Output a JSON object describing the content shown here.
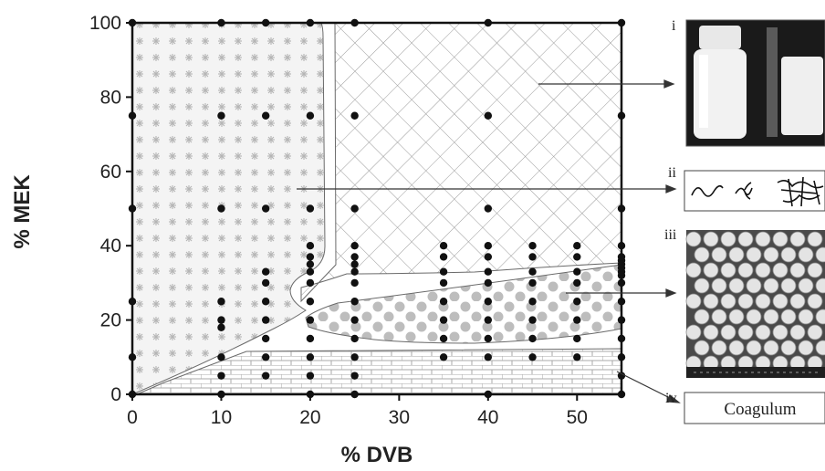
{
  "chart_data": {
    "type": "scatter",
    "title": "",
    "xlabel": "% DVB",
    "ylabel": "% MEK",
    "xlim": [
      0,
      55
    ],
    "ylim": [
      0,
      100
    ],
    "x_ticks": [
      0,
      10,
      20,
      30,
      40,
      50
    ],
    "y_ticks": [
      0,
      20,
      40,
      60,
      80,
      100
    ],
    "points": [
      [
        0,
        0
      ],
      [
        0,
        10
      ],
      [
        0,
        25
      ],
      [
        0,
        50
      ],
      [
        0,
        75
      ],
      [
        0,
        100
      ],
      [
        10,
        0
      ],
      [
        10,
        5
      ],
      [
        10,
        10
      ],
      [
        10,
        18
      ],
      [
        10,
        20
      ],
      [
        10,
        25
      ],
      [
        10,
        50
      ],
      [
        10,
        75
      ],
      [
        10,
        100
      ],
      [
        15,
        5
      ],
      [
        15,
        10
      ],
      [
        15,
        15
      ],
      [
        15,
        20
      ],
      [
        15,
        25
      ],
      [
        15,
        30
      ],
      [
        15,
        33
      ],
      [
        15,
        50
      ],
      [
        15,
        75
      ],
      [
        15,
        100
      ],
      [
        20,
        0
      ],
      [
        20,
        5
      ],
      [
        20,
        10
      ],
      [
        20,
        15
      ],
      [
        20,
        20
      ],
      [
        20,
        25
      ],
      [
        20,
        30
      ],
      [
        20,
        33
      ],
      [
        20,
        35
      ],
      [
        20,
        37
      ],
      [
        20,
        40
      ],
      [
        20,
        50
      ],
      [
        20,
        75
      ],
      [
        20,
        100
      ],
      [
        25,
        0
      ],
      [
        25,
        5
      ],
      [
        25,
        10
      ],
      [
        25,
        15
      ],
      [
        25,
        20
      ],
      [
        25,
        25
      ],
      [
        25,
        30
      ],
      [
        25,
        33
      ],
      [
        25,
        35
      ],
      [
        25,
        37
      ],
      [
        25,
        40
      ],
      [
        25,
        50
      ],
      [
        25,
        75
      ],
      [
        25,
        100
      ],
      [
        35,
        10
      ],
      [
        35,
        15
      ],
      [
        35,
        20
      ],
      [
        35,
        25
      ],
      [
        35,
        30
      ],
      [
        35,
        33
      ],
      [
        35,
        37
      ],
      [
        35,
        40
      ],
      [
        40,
        0
      ],
      [
        40,
        10
      ],
      [
        40,
        15
      ],
      [
        40,
        20
      ],
      [
        40,
        25
      ],
      [
        40,
        30
      ],
      [
        40,
        33
      ],
      [
        40,
        37
      ],
      [
        40,
        40
      ],
      [
        40,
        50
      ],
      [
        40,
        75
      ],
      [
        40,
        100
      ],
      [
        45,
        10
      ],
      [
        45,
        15
      ],
      [
        45,
        20
      ],
      [
        45,
        25
      ],
      [
        45,
        30
      ],
      [
        45,
        33
      ],
      [
        45,
        37
      ],
      [
        45,
        40
      ],
      [
        50,
        10
      ],
      [
        50,
        15
      ],
      [
        50,
        20
      ],
      [
        50,
        25
      ],
      [
        50,
        30
      ],
      [
        50,
        33
      ],
      [
        50,
        37
      ],
      [
        50,
        40
      ],
      [
        55,
        0
      ],
      [
        55,
        5
      ],
      [
        55,
        10
      ],
      [
        55,
        15
      ],
      [
        55,
        20
      ],
      [
        55,
        25
      ],
      [
        55,
        30
      ],
      [
        55,
        32
      ],
      [
        55,
        33
      ],
      [
        55,
        34
      ],
      [
        55,
        35
      ],
      [
        55,
        36
      ],
      [
        55,
        37
      ],
      [
        55,
        40
      ],
      [
        55,
        50
      ],
      [
        55,
        75
      ],
      [
        55,
        100
      ]
    ],
    "regions": [
      {
        "label": "i",
        "pattern": "crosshatch"
      },
      {
        "label": "ii",
        "pattern": "stars"
      },
      {
        "label": "iii",
        "pattern": "dots"
      },
      {
        "label": "iv",
        "pattern": "bricks"
      }
    ]
  },
  "panels": {
    "i_label": "i",
    "ii_label": "ii",
    "iii_label": "iii",
    "iv_label": "iv",
    "iv_text": "Coagulum"
  }
}
